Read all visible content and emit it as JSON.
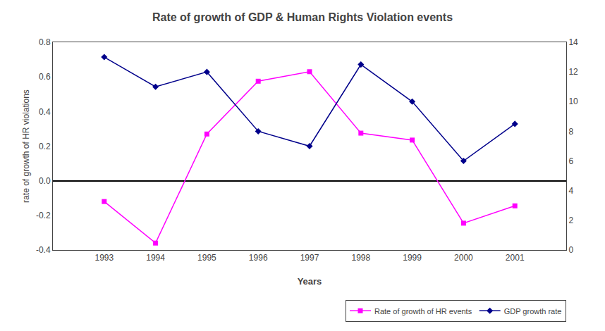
{
  "chart_data": {
    "type": "line",
    "title": "Rate of growth of GDP & Human Rights Violation events",
    "x": [
      1993,
      1994,
      1995,
      1996,
      1997,
      1998,
      1999,
      2000,
      2001
    ],
    "xlabel": "Years",
    "ylabel": "rate of growth of HR violations",
    "xlim": [
      1992,
      2002
    ],
    "xticks": [
      1993,
      1994,
      1995,
      1996,
      1997,
      1998,
      1999,
      2000,
      2001
    ],
    "ylim": [
      -0.4,
      0.8
    ],
    "yticks": [
      -0.4,
      -0.2,
      {
        "value": 0,
        "label": "0.0"
      },
      0.2,
      0.4,
      0.6,
      0.8
    ],
    "y2lim": [
      0,
      14
    ],
    "y2ticks": [
      0,
      2,
      4,
      6,
      8,
      10,
      12,
      14
    ],
    "series": [
      {
        "name": "Rate of growth of HR events",
        "color": "#FF00FF",
        "marker": "square",
        "line_style": "solid",
        "values": [
          -0.12,
          -0.36,
          0.27,
          0.575,
          0.63,
          0.275,
          0.235,
          -0.245,
          -0.145
        ]
      },
      {
        "name": "GDP growth rate",
        "color": "#00008B",
        "marker": "diamond",
        "line_style": "solid",
        "axis": "y2",
        "values": [
          13.0,
          11.0,
          12.0,
          8.0,
          7.0,
          12.5,
          10.0,
          6.0,
          8.5
        ]
      }
    ],
    "legend": "lower right",
    "grid": false
  }
}
